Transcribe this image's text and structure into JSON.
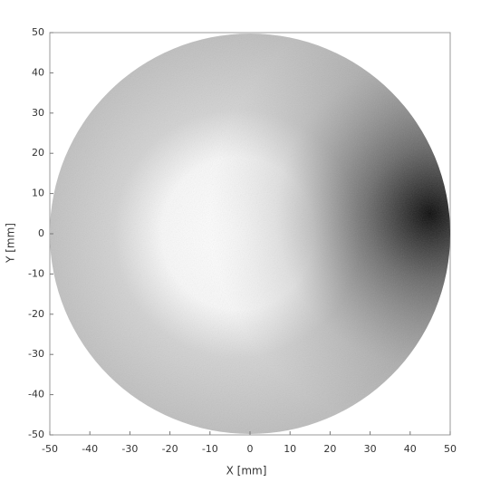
{
  "chart_data": {
    "type": "map",
    "xlabel": "X [mm]",
    "ylabel": "Y [mm]",
    "xlim": [
      -50,
      50
    ],
    "ylim": [
      -50,
      50
    ],
    "xticks": [
      -50,
      -40,
      -30,
      -20,
      -10,
      0,
      10,
      20,
      30,
      40,
      50
    ],
    "yticks": [
      -50,
      -40,
      -30,
      -20,
      -10,
      0,
      10,
      20,
      30,
      40,
      50
    ]
  }
}
